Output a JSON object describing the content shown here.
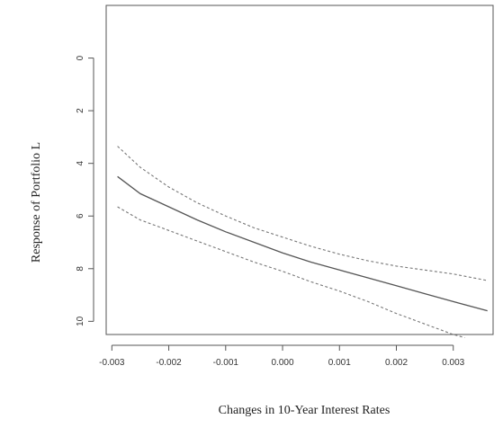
{
  "chart_data": {
    "type": "line",
    "xlabel": "Changes in 10-Year Interest Rates",
    "ylabel": "Response of Portfolio L",
    "xlim": [
      -0.0031,
      0.0037
    ],
    "ylim": [
      10.5,
      -2.0
    ],
    "y_reversed": true,
    "x_ticks": [
      -0.003,
      -0.002,
      -0.001,
      0.0,
      0.001,
      0.002,
      0.003
    ],
    "x_tick_labels": [
      "-0.003",
      "-0.002",
      "-0.001",
      "0.000",
      "0.001",
      "0.002",
      "0.003"
    ],
    "y_ticks": [
      0,
      2,
      4,
      6,
      8,
      10
    ],
    "y_tick_labels": [
      "0",
      "2",
      "4",
      "6",
      "8",
      "10"
    ],
    "grid": false,
    "series": [
      {
        "style": "dashed",
        "color": "#777777",
        "x": [
          -0.0029,
          -0.0025,
          -0.002,
          -0.0015,
          -0.001,
          -0.0005,
          0.0,
          0.0005,
          0.001,
          0.0015,
          0.002,
          0.0025,
          0.003,
          0.0036
        ],
        "y": [
          3.35,
          4.15,
          4.9,
          5.5,
          6.0,
          6.45,
          6.8,
          7.15,
          7.45,
          7.7,
          7.9,
          8.05,
          8.2,
          8.45
        ]
      },
      {
        "style": "solid",
        "color": "#555555",
        "x": [
          -0.0029,
          -0.0025,
          -0.002,
          -0.0015,
          -0.001,
          -0.0005,
          0.0,
          0.0005,
          0.001,
          0.0015,
          0.002,
          0.0025,
          0.003,
          0.0036
        ],
        "y": [
          4.5,
          5.15,
          5.65,
          6.15,
          6.6,
          7.0,
          7.4,
          7.75,
          8.05,
          8.35,
          8.65,
          8.95,
          9.25,
          9.6
        ]
      },
      {
        "style": "dashed",
        "color": "#777777",
        "x": [
          -0.0029,
          -0.0025,
          -0.002,
          -0.0015,
          -0.001,
          -0.0005,
          0.0,
          0.0005,
          0.001,
          0.0015,
          0.002,
          0.0025,
          0.003,
          0.0032
        ],
        "y": [
          5.65,
          6.15,
          6.55,
          6.95,
          7.35,
          7.75,
          8.1,
          8.5,
          8.85,
          9.25,
          9.7,
          10.1,
          10.5,
          10.62
        ]
      }
    ]
  }
}
